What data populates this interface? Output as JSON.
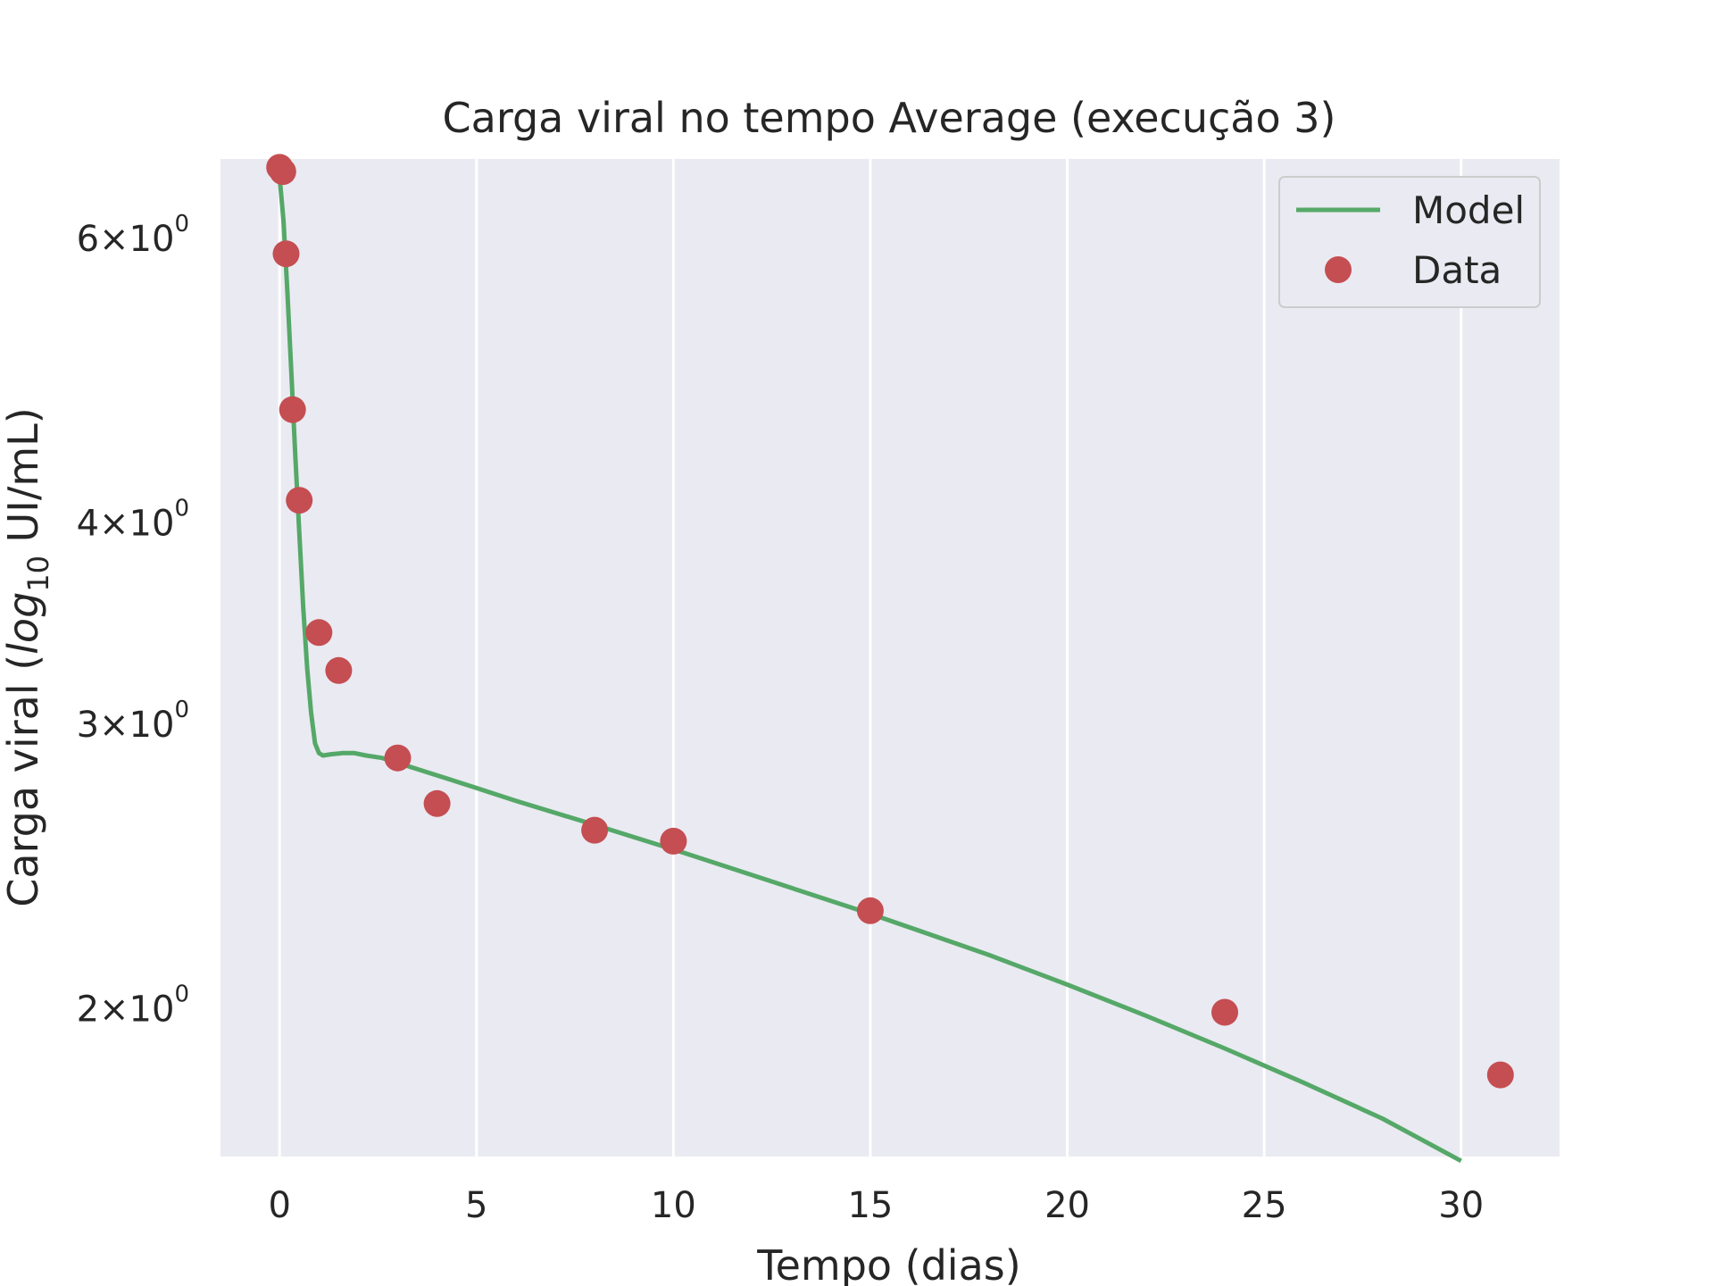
{
  "chart_data": {
    "type": "line",
    "title": "Carga viral no tempo Average (execução 3)",
    "xlabel": "Tempo (dias)",
    "ylabel": {
      "prefix": "Carga viral (",
      "italic": "log",
      "subscript": "10",
      "suffix": " UI/mL)"
    },
    "y_scale": "log",
    "xlim": [
      -1.5,
      32.5
    ],
    "ylim": [
      1.62,
      6.72
    ],
    "grid": "vertical",
    "legend_position": "upper right",
    "x_ticks": [
      {
        "value": 0,
        "label": "0"
      },
      {
        "value": 5,
        "label": "5"
      },
      {
        "value": 10,
        "label": "10"
      },
      {
        "value": 15,
        "label": "15"
      },
      {
        "value": 20,
        "label": "20"
      },
      {
        "value": 25,
        "label": "25"
      },
      {
        "value": 30,
        "label": "30"
      }
    ],
    "y_ticks": [
      {
        "value": 2,
        "mantissa": "2",
        "times": "×10",
        "exponent": "0"
      },
      {
        "value": 3,
        "mantissa": "3",
        "times": "×10",
        "exponent": "0"
      },
      {
        "value": 4,
        "mantissa": "4",
        "times": "×10",
        "exponent": "0"
      },
      {
        "value": 6,
        "mantissa": "6",
        "times": "×10",
        "exponent": "0"
      }
    ],
    "series": [
      {
        "name": "Model",
        "kind": "line",
        "color": "#55a868",
        "x": [
          0.0,
          0.1,
          0.2,
          0.3,
          0.4,
          0.5,
          0.6,
          0.7,
          0.8,
          0.9,
          1.0,
          1.1,
          1.3,
          1.6,
          1.9,
          2.2,
          2.6,
          3.0,
          4.0,
          5.0,
          6.0,
          8.0,
          10.0,
          12.0,
          15.0,
          18.0,
          20.0,
          22.0,
          24.0,
          26.0,
          28.0,
          30.0
        ],
        "y": [
          6.55,
          6.15,
          5.55,
          4.95,
          4.4,
          3.95,
          3.55,
          3.25,
          3.05,
          2.92,
          2.88,
          2.87,
          2.875,
          2.88,
          2.88,
          2.87,
          2.86,
          2.84,
          2.79,
          2.74,
          2.69,
          2.6,
          2.51,
          2.42,
          2.29,
          2.16,
          2.07,
          1.98,
          1.89,
          1.8,
          1.71,
          1.61
        ]
      },
      {
        "name": "Data",
        "kind": "scatter",
        "color": "#c44e52",
        "x": [
          0.0,
          0.083,
          0.167,
          0.33,
          0.5,
          1.0,
          1.5,
          3.0,
          4.0,
          8.0,
          10.0,
          15.0,
          24.0,
          31.0
        ],
        "y": [
          6.64,
          6.6,
          5.87,
          4.7,
          4.13,
          3.42,
          3.24,
          2.86,
          2.68,
          2.58,
          2.54,
          2.3,
          1.99,
          1.82
        ]
      }
    ]
  }
}
